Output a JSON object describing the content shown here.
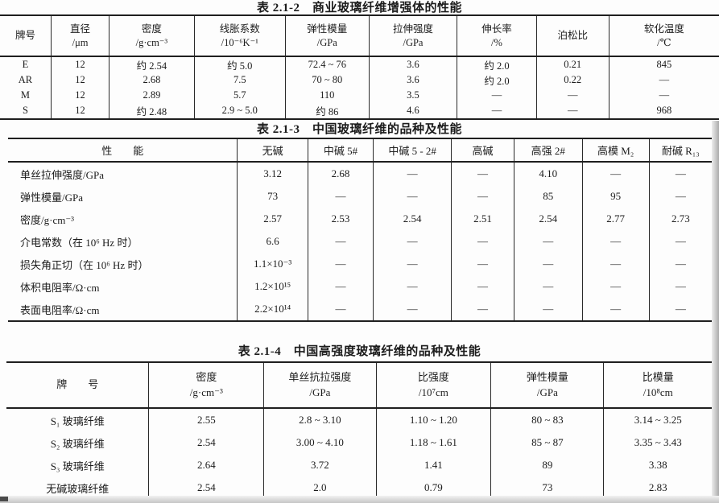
{
  "document": {
    "background": "#fdfdfd",
    "text_color": "#1c1c1c",
    "border_color": "#1f1f1f"
  },
  "tables": [
    {
      "title": "表 2.1-2　商业玻璃纤维增强体的性能",
      "columns": [
        {
          "label": "牌号",
          "unit": ""
        },
        {
          "label": "直径",
          "unit": "/μm"
        },
        {
          "label": "密度",
          "unit": "/g·cm⁻³"
        },
        {
          "label": "线胀系数",
          "unit": "/10⁻⁶K⁻¹"
        },
        {
          "label": "弹性模量",
          "unit": "/GPa"
        },
        {
          "label": "拉伸强度",
          "unit": "/GPa"
        },
        {
          "label": "伸长率",
          "unit": "/%"
        },
        {
          "label": "泊松比",
          "unit": ""
        },
        {
          "label": "软化温度",
          "unit": "/℃"
        }
      ],
      "rows": [
        [
          "E",
          "12",
          "约 2.54",
          "约 5.0",
          "72.4 ~ 76",
          "3.6",
          "约 2.0",
          "0.21",
          "845"
        ],
        [
          "AR",
          "12",
          "2.68",
          "7.5",
          "70 ~ 80",
          "3.6",
          "约 2.0",
          "0.22",
          "—"
        ],
        [
          "M",
          "12",
          "2.89",
          "5.7",
          "110",
          "3.5",
          "—",
          "—",
          "—"
        ],
        [
          "S",
          "12",
          "约 2.48",
          "2.9 ~ 5.0",
          "约 86",
          "4.6",
          "—",
          "—",
          "968"
        ]
      ]
    },
    {
      "title": "表 2.1-3　中国玻璃纤维的品种及性能",
      "columns": [
        "性　　能",
        "无碱",
        "中碱 5#",
        "中碱 5 - 2#",
        "高碱",
        "高强 2#",
        "高模 M₂",
        "耐碱 R₁₃"
      ],
      "rows": [
        [
          "单丝拉伸强度/GPa",
          "3.12",
          "2.68",
          "—",
          "—",
          "4.10",
          "—",
          "—"
        ],
        [
          "弹性模量/GPa",
          "73",
          "—",
          "—",
          "—",
          "85",
          "95",
          "—"
        ],
        [
          "密度/g·cm⁻³",
          "2.57",
          "2.53",
          "2.54",
          "2.51",
          "2.54",
          "2.77",
          "2.73"
        ],
        [
          "介电常数（在 10⁶ Hz 时）",
          "6.6",
          "—",
          "—",
          "—",
          "—",
          "—",
          "—"
        ],
        [
          "损失角正切（在 10⁶ Hz 时）",
          "1.1×10⁻³",
          "—",
          "—",
          "—",
          "—",
          "—",
          "—"
        ],
        [
          "体积电阻率/Ω·cm",
          "1.2×10¹⁵",
          "—",
          "—",
          "—",
          "—",
          "—",
          "—"
        ],
        [
          "表面电阻率/Ω·cm",
          "2.2×10¹⁴",
          "—",
          "—",
          "—",
          "—",
          "—",
          "—"
        ]
      ]
    },
    {
      "title": "表 2.1-4　中国高强度玻璃纤维的品种及性能",
      "columns": [
        {
          "label": "牌　　号",
          "unit": ""
        },
        {
          "label": "密度",
          "unit": "/g·cm⁻³"
        },
        {
          "label": "单丝抗拉强度",
          "unit": "/GPa"
        },
        {
          "label": "比强度",
          "unit": "/10⁷cm"
        },
        {
          "label": "弹性模量",
          "unit": "/GPa"
        },
        {
          "label": "比模量",
          "unit": "/10⁸cm"
        }
      ],
      "rows": [
        [
          "S₁ 玻璃纤维",
          "2.55",
          "2.8 ~ 3.10",
          "1.10 ~ 1.20",
          "80 ~ 83",
          "3.14 ~ 3.25"
        ],
        [
          "S₂ 玻璃纤维",
          "2.54",
          "3.00 ~ 4.10",
          "1.18 ~ 1.61",
          "85 ~ 87",
          "3.35 ~ 3.43"
        ],
        [
          "S₃ 玻璃纤维",
          "2.64",
          "3.72",
          "1.41",
          "89",
          "3.38"
        ],
        [
          "无碱玻璃纤维",
          "2.54",
          "2.0",
          "0.79",
          "73",
          "2.83"
        ]
      ]
    }
  ]
}
